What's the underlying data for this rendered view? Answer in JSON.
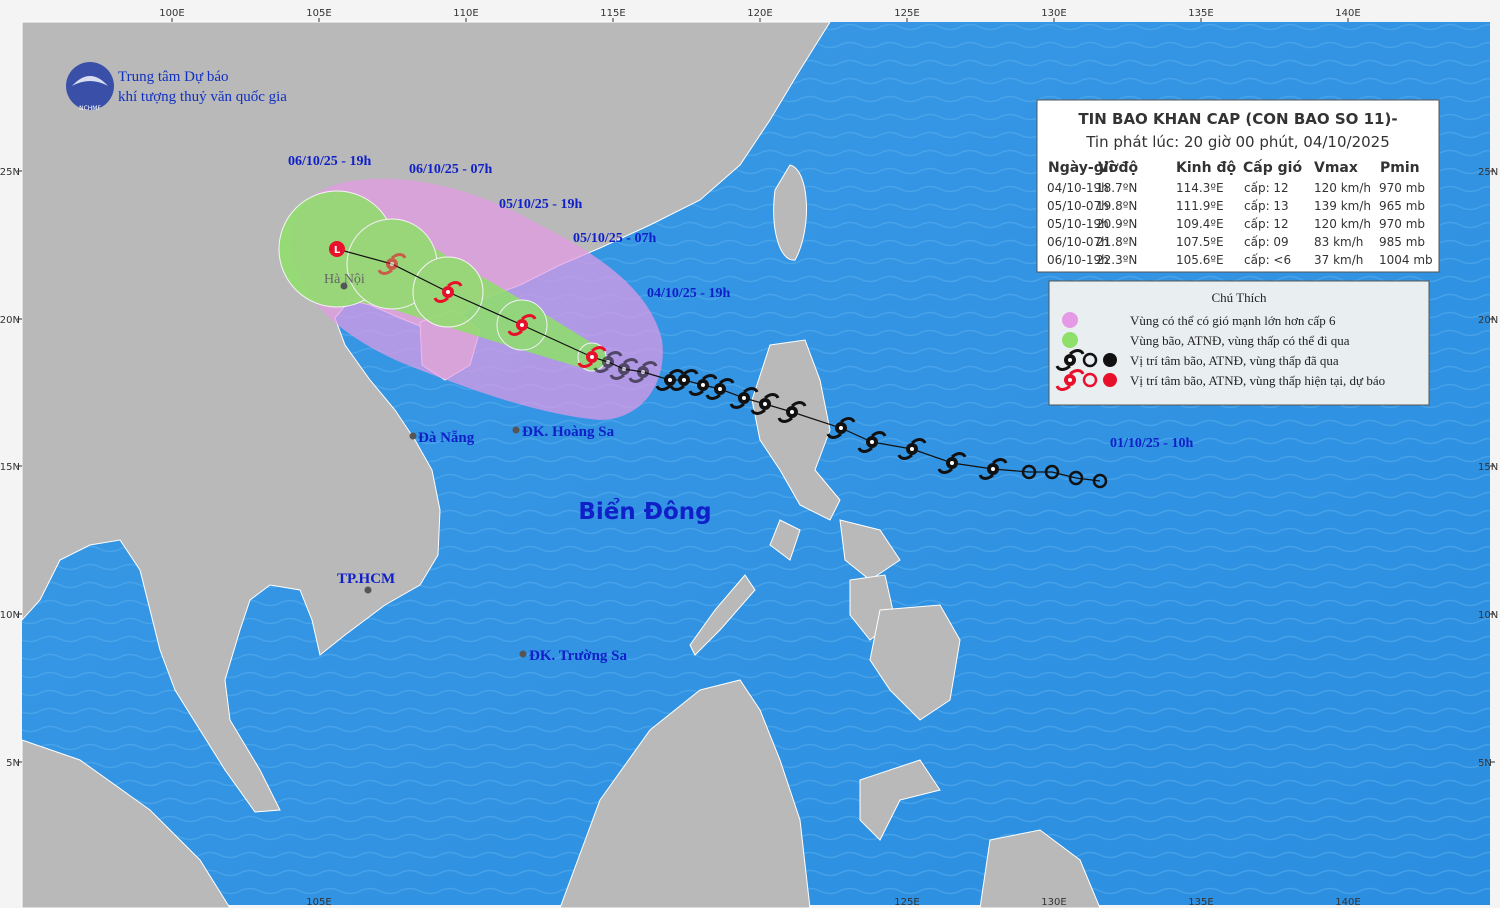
{
  "org": {
    "line1": "Trung tâm Dự báo",
    "line2": "khí tượng thuỷ văn quốc gia",
    "logo": "NCHMF"
  },
  "bulletin": {
    "title": "TIN BAO KHAN CAP (CON BAO SO 11)-",
    "issued": "Tin phát lúc: 20 giờ 00 phút, 04/10/2025",
    "columns": [
      "Ngày-giờ",
      "Vĩ độ",
      "Kinh độ",
      "Cấp gió",
      "Vmax",
      "Pmin"
    ],
    "rows": [
      [
        "04/10-19h",
        "18.7ºN",
        "114.3ºE",
        "cấp: 12",
        "120 km/h",
        "970 mb"
      ],
      [
        "05/10-07h",
        "19.8ºN",
        "111.9ºE",
        "cấp: 13",
        "139 km/h",
        "965 mb"
      ],
      [
        "05/10-19h",
        "20.9ºN",
        "109.4ºE",
        "cấp: 12",
        "120 km/h",
        "970 mb"
      ],
      [
        "06/10-07h",
        "21.8ºN",
        "107.5ºE",
        "cấp: 09",
        "83 km/h",
        "985 mb"
      ],
      [
        "06/10-19h",
        "22.3ºN",
        "105.6ºE",
        "cấp: <6",
        "37 km/h",
        "1004 mb"
      ]
    ]
  },
  "legend": {
    "title": "Chú Thích",
    "items": [
      "Vùng có thể có gió mạnh lớn hơn cấp 6",
      "Vùng bão, ATNĐ, vùng thấp có thể đi qua",
      "Vị trí tâm bão, ATNĐ, vùng thấp đã qua",
      "Vị trí tâm bão, ATNĐ, vùng thấp hiện tại, dự báo"
    ]
  },
  "map": {
    "lon_top": [
      "100E",
      "105E",
      "110E",
      "115E",
      "120E",
      "125E",
      "130E",
      "135E",
      "140E"
    ],
    "lon_bottom": [
      "105E",
      "125E",
      "130E",
      "135E",
      "140E"
    ],
    "lat_left": [
      "25N",
      "20N",
      "15N",
      "10N",
      "5N"
    ],
    "lat_right": [
      "25N",
      "20N",
      "15N",
      "10N",
      "5N"
    ],
    "sea": "Biển Đông",
    "places": [
      "Hà Nội",
      "Đà Nẵng",
      "ĐK. Hoàng Sa",
      "TP.HCM",
      "ĐK. Trường Sa"
    ],
    "times": [
      "06/10/25 - 19h",
      "06/10/25 - 07h",
      "05/10/25 - 19h",
      "05/10/25 - 07h",
      "04/10/25 - 19h",
      "01/10/25 - 10h"
    ]
  }
}
